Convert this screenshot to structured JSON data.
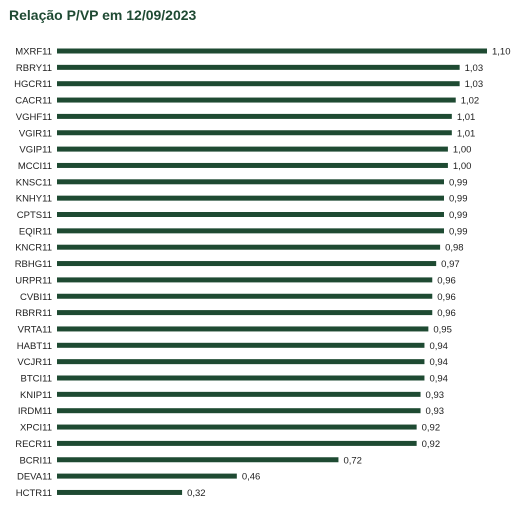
{
  "chart_data": {
    "type": "bar",
    "orientation": "horizontal",
    "title": "Relação P/VP em 12/09/2023",
    "bar_color": "#1e4a32",
    "grid": false,
    "legend": "none",
    "xlim": [
      0,
      1.1
    ],
    "categories": [
      "MXRF11",
      "RBRY11",
      "HGCR11",
      "CACR11",
      "VGHF11",
      "VGIR11",
      "VGIP11",
      "MCCI11",
      "KNSC11",
      "KNHY11",
      "CPTS11",
      "EQIR11",
      "KNCR11",
      "RBHG11",
      "URPR11",
      "CVBI11",
      "RBRR11",
      "VRTA11",
      "HABT11",
      "VCJR11",
      "BTCI11",
      "KNIP11",
      "IRDM11",
      "XPCI11",
      "RECR11",
      "BCRI11",
      "DEVA11",
      "HCTR11"
    ],
    "values": [
      1.1,
      1.03,
      1.03,
      1.02,
      1.01,
      1.01,
      1.0,
      1.0,
      0.99,
      0.99,
      0.99,
      0.99,
      0.98,
      0.97,
      0.96,
      0.96,
      0.96,
      0.95,
      0.94,
      0.94,
      0.94,
      0.93,
      0.93,
      0.92,
      0.92,
      0.72,
      0.46,
      0.32
    ],
    "value_labels": [
      "1,10",
      "1,03",
      "1,03",
      "1,02",
      "1,01",
      "1,01",
      "1,00",
      "1,00",
      "0,99",
      "0,99",
      "0,99",
      "0,99",
      "0,98",
      "0,97",
      "0,96",
      "0,96",
      "0,96",
      "0,95",
      "0,94",
      "0,94",
      "0,94",
      "0,93",
      "0,93",
      "0,92",
      "0,92",
      "0,72",
      "0,46",
      "0,32"
    ]
  }
}
